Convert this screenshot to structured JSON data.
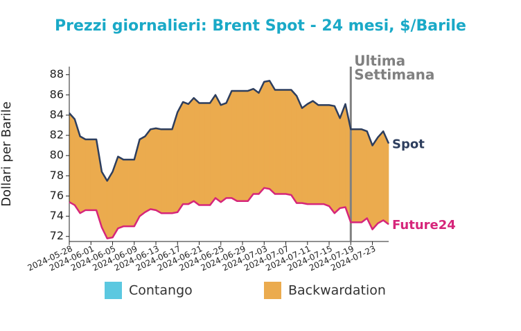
{
  "chart_data": {
    "type": "line",
    "title": "Prezzi giornalieri: Brent Spot - 24 mesi, $/Barile",
    "y_label": "Dollari per Barile",
    "x": [
      "2024-05-28",
      "2024-05-29",
      "2024-05-30",
      "2024-05-31",
      "2024-06-01",
      "2024-06-02",
      "2024-06-03",
      "2024-06-04",
      "2024-06-05",
      "2024-06-06",
      "2024-06-07",
      "2024-06-08",
      "2024-06-09",
      "2024-06-10",
      "2024-06-11",
      "2024-06-12",
      "2024-06-13",
      "2024-06-14",
      "2024-06-15",
      "2024-06-16",
      "2024-06-17",
      "2024-06-18",
      "2024-06-19",
      "2024-06-20",
      "2024-06-21",
      "2024-06-22",
      "2024-06-23",
      "2024-06-24",
      "2024-06-25",
      "2024-06-26",
      "2024-06-27",
      "2024-06-28",
      "2024-06-29",
      "2024-06-30",
      "2024-07-01",
      "2024-07-02",
      "2024-07-03",
      "2024-07-04",
      "2024-07-05",
      "2024-07-06",
      "2024-07-07",
      "2024-07-08",
      "2024-07-09",
      "2024-07-10",
      "2024-07-11",
      "2024-07-12",
      "2024-07-13",
      "2024-07-14",
      "2024-07-15",
      "2024-07-16",
      "2024-07-17",
      "2024-07-18",
      "2024-07-19",
      "2024-07-20",
      "2024-07-21",
      "2024-07-22",
      "2024-07-23",
      "2024-07-24",
      "2024-07-25",
      "2024-07-26"
    ],
    "series": [
      {
        "name": "Spot",
        "color": "#2d3e5e",
        "values": [
          84.2,
          83.6,
          81.9,
          81.6,
          81.6,
          81.6,
          78.4,
          77.5,
          78.4,
          79.9,
          79.6,
          79.6,
          79.6,
          81.6,
          81.9,
          82.6,
          82.7,
          82.6,
          82.6,
          82.6,
          84.3,
          85.3,
          85.1,
          85.7,
          85.2,
          85.2,
          85.2,
          86.0,
          85.0,
          85.2,
          86.4,
          86.4,
          86.4,
          86.4,
          86.6,
          86.2,
          87.3,
          87.4,
          86.5,
          86.5,
          86.5,
          86.5,
          85.9,
          84.7,
          85.1,
          85.4,
          85.0,
          85.0,
          85.0,
          84.9,
          83.7,
          85.1,
          82.6,
          82.6,
          82.6,
          82.4,
          81.0,
          81.8,
          82.4,
          81.2
        ]
      },
      {
        "name": "Future24",
        "color": "#d6257a",
        "values": [
          75.4,
          75.1,
          74.3,
          74.6,
          74.6,
          74.6,
          72.9,
          71.8,
          71.9,
          72.8,
          73.0,
          73.0,
          73.0,
          74.0,
          74.4,
          74.7,
          74.6,
          74.3,
          74.3,
          74.3,
          74.4,
          75.2,
          75.2,
          75.5,
          75.1,
          75.1,
          75.1,
          75.8,
          75.4,
          75.8,
          75.8,
          75.5,
          75.5,
          75.5,
          76.2,
          76.2,
          76.8,
          76.7,
          76.2,
          76.2,
          76.2,
          76.1,
          75.3,
          75.3,
          75.2,
          75.2,
          75.2,
          75.2,
          75.0,
          74.3,
          74.8,
          74.9,
          73.4,
          73.4,
          73.4,
          73.8,
          72.7,
          73.3,
          73.6,
          73.2
        ]
      }
    ],
    "fills": [
      {
        "name": "Contango",
        "color": "#5bc8e0"
      },
      {
        "name": "Backwardation",
        "color": "#ebab4e"
      }
    ],
    "xlim": [
      "2024-05-28",
      "2024-07-26"
    ],
    "xticks": [
      "2024-05-28",
      "2024-06-01",
      "2024-06-05",
      "2024-06-09",
      "2024-06-13",
      "2024-06-17",
      "2024-06-21",
      "2024-06-25",
      "2024-06-29",
      "2024-07-03",
      "2024-07-07",
      "2024-07-11",
      "2024-07-15",
      "2024-07-19",
      "2024-07-23"
    ],
    "ylim": [
      71.5,
      88.8
    ],
    "yticks": [
      72,
      74,
      76,
      78,
      80,
      82,
      84,
      86,
      88
    ],
    "annotation": {
      "x": "2024-07-19",
      "lines": [
        "Ultima",
        "Settimana"
      ],
      "color": "#808080"
    }
  }
}
